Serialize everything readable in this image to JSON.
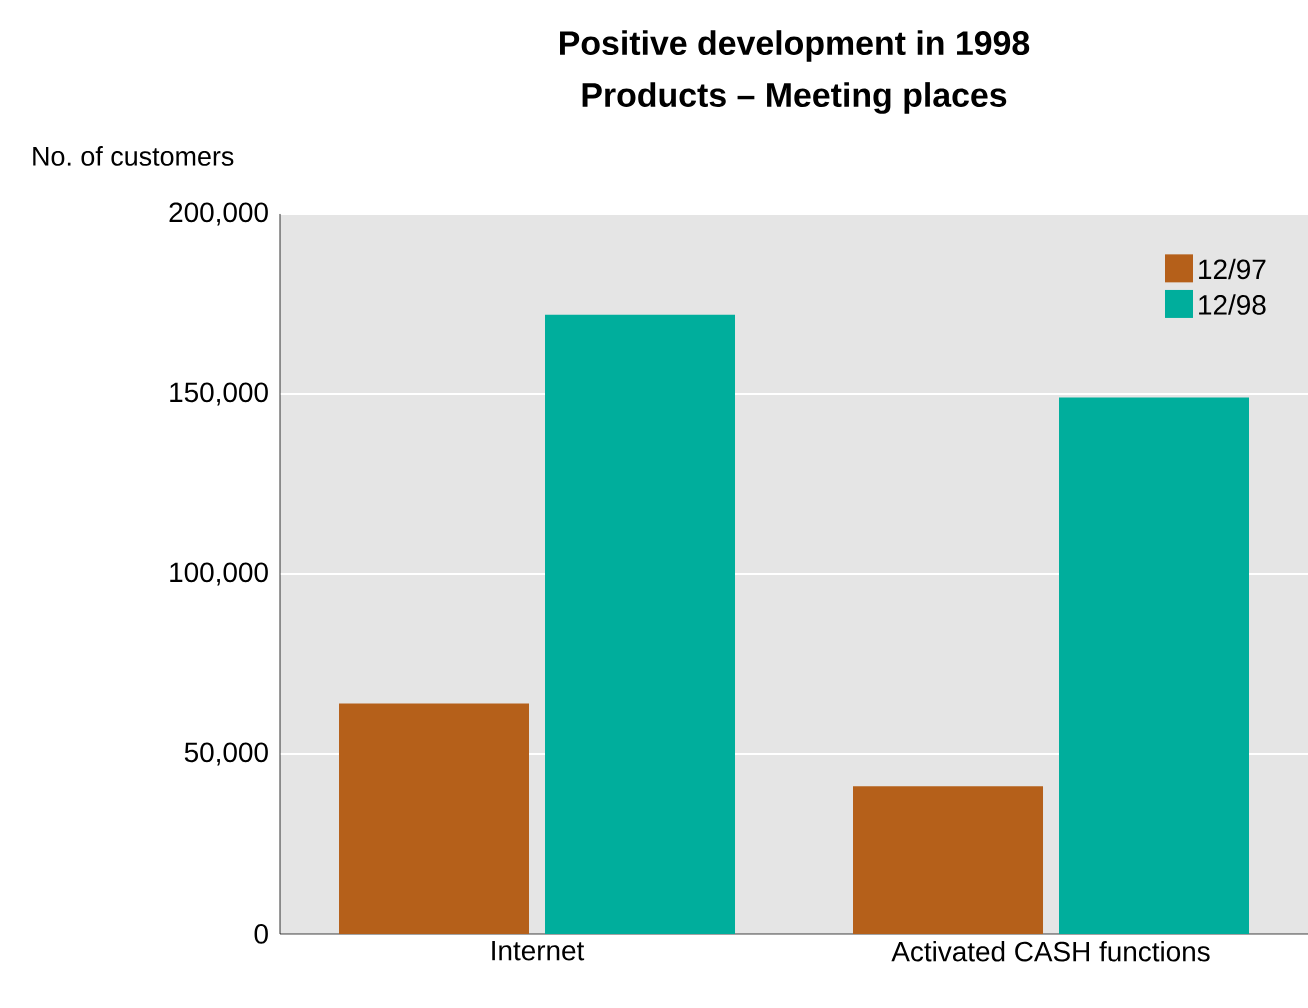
{
  "chart_data": {
    "type": "bar",
    "title": "Positive development in 1998",
    "subtitle": "Products – Meeting places",
    "ylabel": "No. of customers",
    "categories": [
      "Internet",
      "Activated CASH functions"
    ],
    "series": [
      {
        "name": "12/97",
        "color": "#b5601a",
        "values": [
          64000,
          41000
        ]
      },
      {
        "name": "12/98",
        "color": "#00ae9c",
        "values": [
          172000,
          149000
        ]
      }
    ],
    "ylim": [
      0,
      200000
    ],
    "yticks": [
      {
        "value": 0,
        "label": "0"
      },
      {
        "value": 50000,
        "label": "50,000"
      },
      {
        "value": 100000,
        "label": "100,000"
      },
      {
        "value": 150000,
        "label": "150,000"
      },
      {
        "value": 200000,
        "label": "200,000"
      }
    ],
    "grid": "y",
    "legend": "top right"
  }
}
